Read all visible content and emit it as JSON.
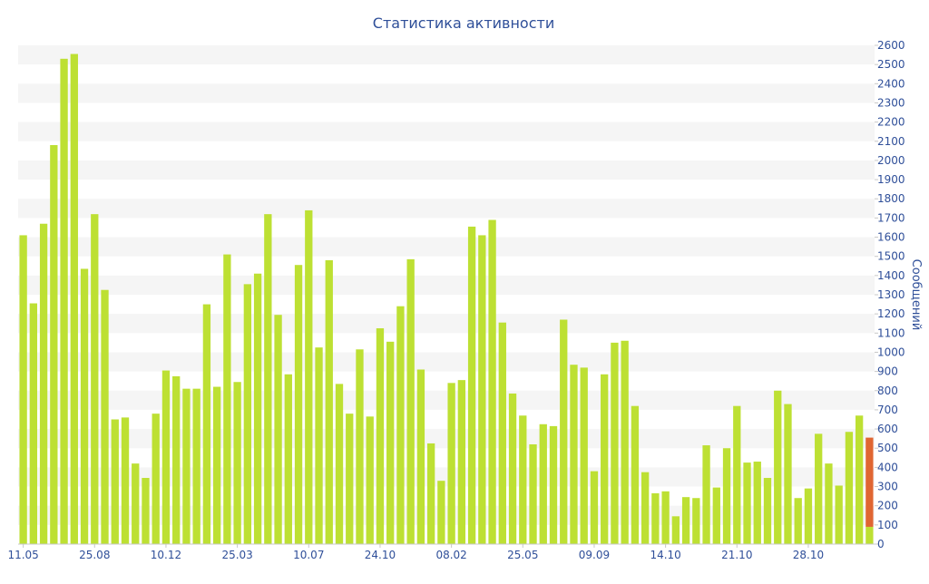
{
  "chart_data": {
    "type": "bar",
    "title": "Статистика активности",
    "ylabel": "Сообщений",
    "xlabel": "",
    "ylim": [
      0,
      2600
    ],
    "yticks": [
      0,
      100,
      200,
      300,
      400,
      500,
      600,
      700,
      800,
      900,
      1000,
      1100,
      1200,
      1300,
      1400,
      1500,
      1600,
      1700,
      1800,
      1900,
      2000,
      2100,
      2200,
      2300,
      2400,
      2500,
      2600
    ],
    "x_tick_labels": [
      {
        "label": "11.05",
        "index": 0
      },
      {
        "label": "25.08",
        "index": 7
      },
      {
        "label": "10.12",
        "index": 14
      },
      {
        "label": "25.03",
        "index": 21
      },
      {
        "label": "10.07",
        "index": 28
      },
      {
        "label": "24.10",
        "index": 35
      },
      {
        "label": "08.02",
        "index": 42
      },
      {
        "label": "25.05",
        "index": 49
      },
      {
        "label": "09.09",
        "index": 56
      },
      {
        "label": "14.10",
        "index": 63
      },
      {
        "label": "21.10",
        "index": 70
      },
      {
        "label": "28.10",
        "index": 77
      }
    ],
    "grid": true,
    "colors": {
      "bar": "#bde033",
      "bar_last_overlay": "#e06632",
      "axis_text": "#2f4f99",
      "title": "#2f4f99",
      "band": "#f5f5f5"
    },
    "values": [
      1610,
      1255,
      1670,
      2080,
      2530,
      2555,
      1435,
      1720,
      1325,
      650,
      660,
      420,
      345,
      680,
      905,
      875,
      810,
      810,
      1250,
      820,
      1510,
      845,
      1355,
      1410,
      1720,
      1195,
      885,
      1455,
      1740,
      1025,
      1480,
      835,
      680,
      1015,
      665,
      1125,
      1055,
      1240,
      1485,
      910,
      525,
      330,
      840,
      855,
      1655,
      1610,
      1690,
      1155,
      785,
      670,
      520,
      625,
      615,
      1170,
      935,
      920,
      380,
      885,
      1050,
      1060,
      720,
      375,
      265,
      275,
      145,
      245,
      240,
      515,
      295,
      500,
      720,
      425,
      430,
      345,
      800,
      730,
      240,
      290,
      575,
      420,
      305,
      585,
      670,
      90
    ],
    "last_bar_overlay_value": 555
  }
}
